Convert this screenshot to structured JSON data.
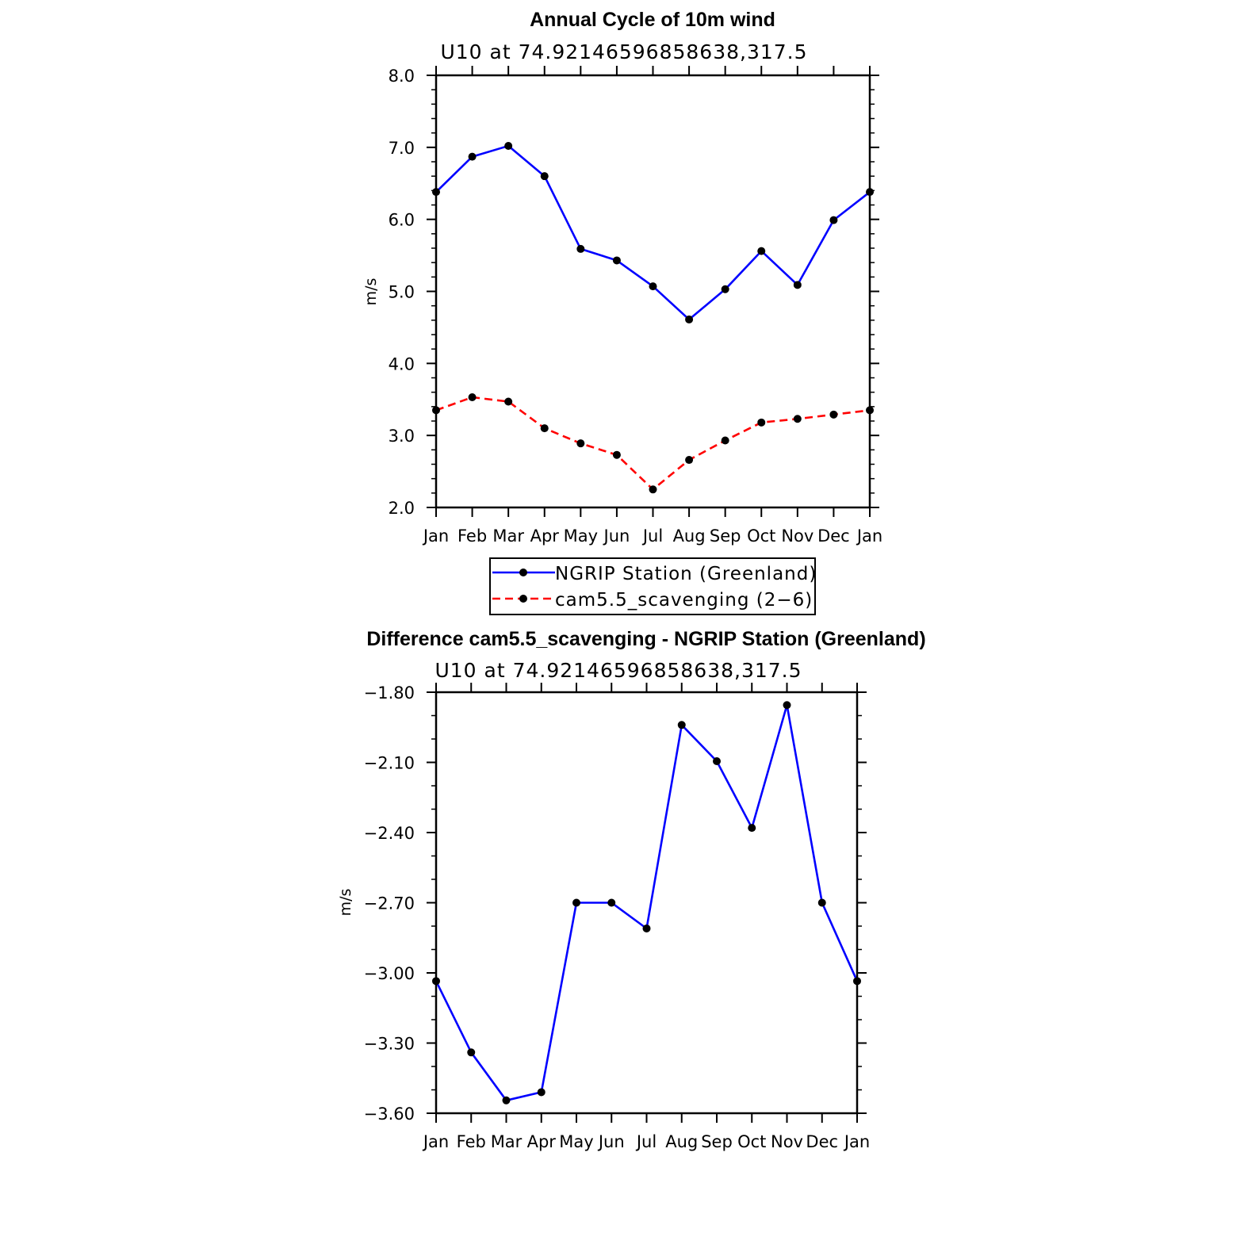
{
  "chart_data": [
    {
      "type": "line",
      "title": "Annual Cycle of 10m wind",
      "subtitle": "U10 at 74.92146596858638,317.5",
      "xlabel": "",
      "ylabel": "m/s",
      "categories": [
        "Jan",
        "Feb",
        "Mar",
        "Apr",
        "May",
        "Jun",
        "Jul",
        "Aug",
        "Sep",
        "Oct",
        "Nov",
        "Dec",
        "Jan"
      ],
      "ylim": [
        2.0,
        8.0
      ],
      "yticks": [
        2.0,
        3.0,
        4.0,
        5.0,
        6.0,
        7.0,
        8.0
      ],
      "ytick_labels": [
        "2.0",
        "3.0",
        "4.0",
        "5.0",
        "6.0",
        "7.0",
        "8.0"
      ],
      "yminor": 0.2,
      "grid": false,
      "legend_position": "bottom-center",
      "series": [
        {
          "name": "NGRIP Station (Greenland)",
          "color": "#0000ff",
          "dash": "solid",
          "values": [
            6.38,
            6.87,
            7.02,
            6.6,
            5.59,
            5.43,
            5.07,
            4.61,
            5.03,
            5.56,
            5.09,
            5.99,
            6.38
          ]
        },
        {
          "name": "cam5.5_scavenging (2−6)",
          "color": "#ff0000",
          "dash": "dashed",
          "values": [
            3.35,
            3.53,
            3.47,
            3.1,
            2.89,
            2.73,
            2.25,
            2.66,
            2.93,
            3.18,
            3.23,
            3.29,
            3.35
          ]
        }
      ]
    },
    {
      "type": "line",
      "title": "Difference cam5.5_scavenging - NGRIP Station (Greenland)",
      "subtitle": "U10 at 74.92146596858638,317.5",
      "xlabel": "",
      "ylabel": "m/s",
      "categories": [
        "Jan",
        "Feb",
        "Mar",
        "Apr",
        "May",
        "Jun",
        "Jul",
        "Aug",
        "Sep",
        "Oct",
        "Nov",
        "Dec",
        "Jan"
      ],
      "ylim": [
        -3.6,
        -1.8
      ],
      "yticks": [
        -3.6,
        -3.3,
        -3.0,
        -2.7,
        -2.4,
        -2.1,
        -1.8
      ],
      "ytick_labels": [
        "−3.60",
        "−3.30",
        "−3.00",
        "−2.70",
        "−2.40",
        "−2.10",
        "−1.80"
      ],
      "yminor": 0.1,
      "grid": false,
      "series": [
        {
          "name": "Difference",
          "color": "#0000ff",
          "dash": "solid",
          "values": [
            -3.035,
            -3.34,
            -3.545,
            -3.51,
            -2.7,
            -2.7,
            -2.81,
            -1.94,
            -2.095,
            -2.38,
            -1.855,
            -2.7,
            -3.035
          ]
        }
      ]
    }
  ]
}
